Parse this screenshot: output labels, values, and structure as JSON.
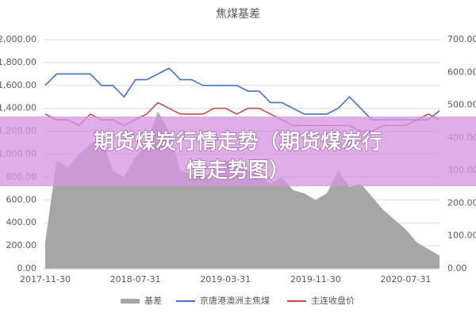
{
  "chart_data": {
    "type": "line-area",
    "title": "焦煤基差",
    "categories": [
      "2017-11-30",
      null,
      null,
      null,
      null,
      null,
      null,
      null,
      "2018-07-31",
      null,
      null,
      null,
      null,
      null,
      null,
      null,
      "2019-03-31",
      null,
      null,
      null,
      null,
      null,
      null,
      null,
      "2019-11-30",
      null,
      null,
      null,
      null,
      null,
      null,
      null,
      "2020-07-31",
      null,
      null,
      null
    ],
    "ylim": [
      0,
      2000
    ],
    "yticks": [
      {
        "value": 0,
        "label": "0.00"
      },
      {
        "value": 200,
        "label": "200.00"
      },
      {
        "value": 400,
        "label": "400.00"
      },
      {
        "value": 600,
        "label": "600.00"
      },
      {
        "value": 800,
        "label": "800.00"
      },
      {
        "value": 1000,
        "label": "1,000.00"
      },
      {
        "value": 1200,
        "label": "1,200.00"
      },
      {
        "value": 1400,
        "label": "1,400.00"
      },
      {
        "value": 1600,
        "label": "1,600.00"
      },
      {
        "value": 1800,
        "label": "1,800.00"
      },
      {
        "value": 2000,
        "label": "2,000.00"
      }
    ],
    "y2lim": [
      0,
      700
    ],
    "y2ticks": [
      {
        "value": 0,
        "label": "0.00"
      },
      {
        "value": 100,
        "label": "100.00"
      },
      {
        "value": 200,
        "label": "200.00"
      },
      {
        "value": 300,
        "label": "300.00"
      },
      {
        "value": 400,
        "label": "400.00"
      },
      {
        "value": 500,
        "label": "500.00"
      },
      {
        "value": 600,
        "label": "600.00"
      },
      {
        "value": 700,
        "label": "700.00"
      }
    ],
    "grid": true,
    "series": [
      {
        "name": "基差",
        "color": "#a6a6a6",
        "kind": "area",
        "axis": "y2",
        "values": [
          80,
          330,
          310,
          350,
          380,
          400,
          300,
          280,
          340,
          380,
          480,
          420,
          300,
          290,
          280,
          300,
          330,
          320,
          300,
          280,
          260,
          280,
          240,
          230,
          210,
          230,
          300,
          250,
          260,
          220,
          180,
          150,
          120,
          80,
          60,
          40
        ]
      },
      {
        "name": "京唐港澳洲主焦煤",
        "color": "#4472c4",
        "kind": "line",
        "values": [
          1600,
          1700,
          1700,
          1700,
          1700,
          1600,
          1600,
          1500,
          1650,
          1650,
          1700,
          1750,
          1650,
          1650,
          1600,
          1600,
          1600,
          1600,
          1550,
          1550,
          1450,
          1450,
          1400,
          1350,
          1350,
          1350,
          1400,
          1500,
          1400,
          1300,
          1300,
          1300,
          1300,
          1300,
          1300,
          1380
        ]
      },
      {
        "name": "主连收盘价",
        "color": "#c0504d",
        "kind": "line",
        "values": [
          1350,
          1300,
          1300,
          1250,
          1350,
          1300,
          1300,
          1250,
          1300,
          1350,
          1450,
          1400,
          1350,
          1350,
          1350,
          1400,
          1400,
          1350,
          1400,
          1400,
          1350,
          1300,
          1250,
          1250,
          1250,
          1250,
          1250,
          1250,
          1200,
          1200,
          1250,
          1250,
          1250,
          1300,
          1350,
          1300
        ]
      }
    ]
  },
  "banner": {
    "lines": [
      "期货煤炭行情走势（期货煤炭行",
      "情走势图）"
    ]
  }
}
